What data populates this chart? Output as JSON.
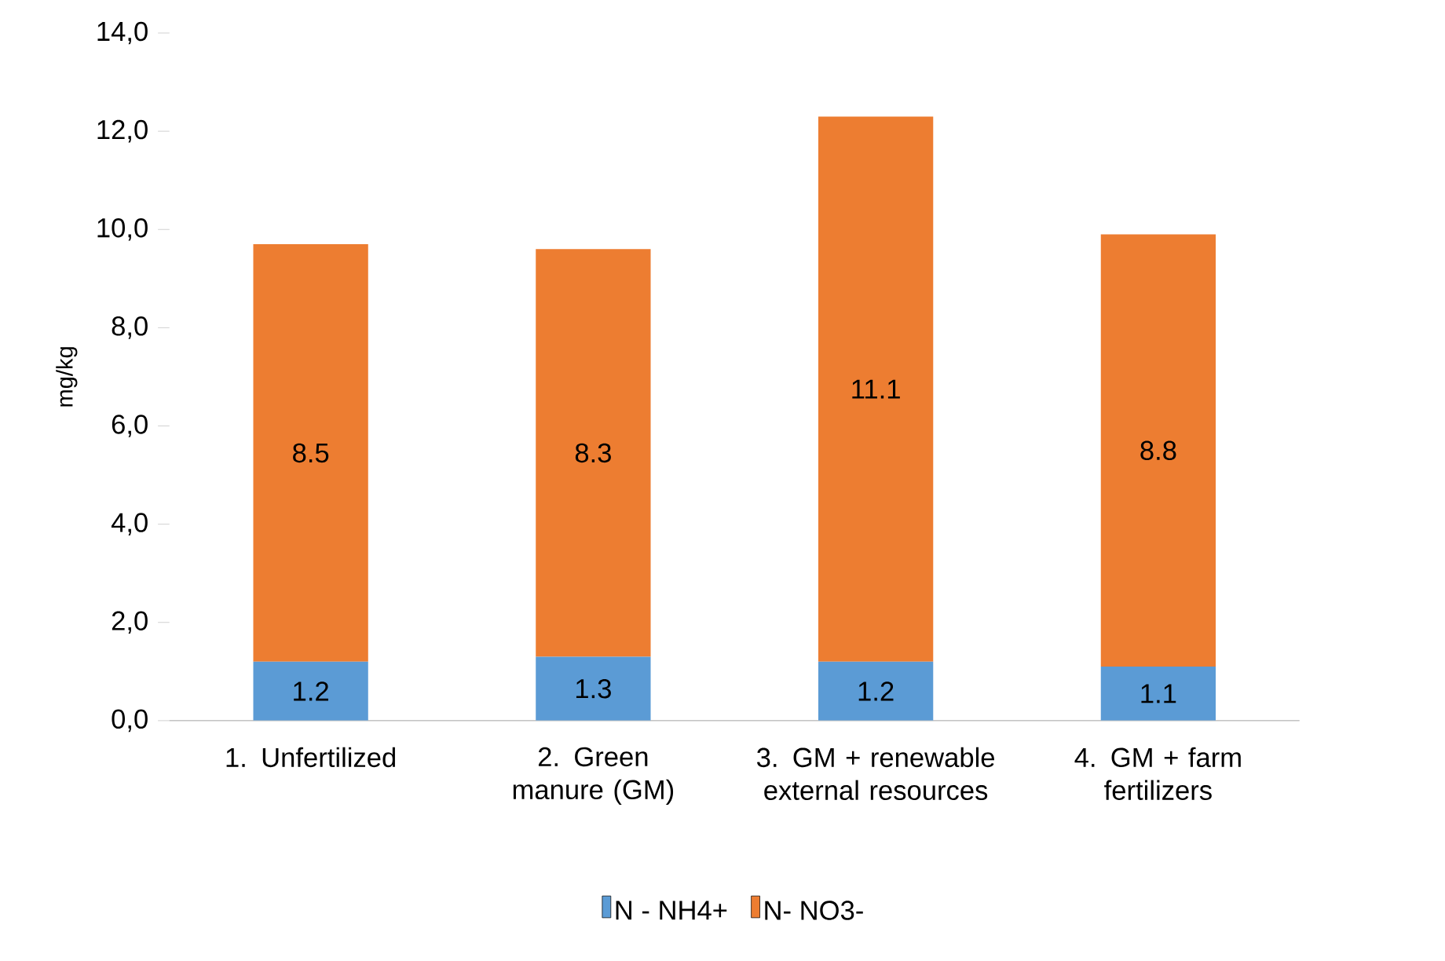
{
  "chart_data": {
    "type": "bar",
    "stacked": true,
    "ylabel": "mg/kg",
    "categories": [
      "1. Unfertilized",
      "2. Green manure (GM)",
      "3. GM + renewable external resources",
      "4. GM + farm fertilizers"
    ],
    "series": [
      {
        "name": "N - NH4+",
        "color": "#5b9bd5",
        "values": [
          1.2,
          1.3,
          1.2,
          1.1
        ]
      },
      {
        "name": "N- NO3-",
        "color": "#ed7d31",
        "values": [
          8.5,
          8.3,
          11.1,
          8.8
        ]
      }
    ],
    "ylim": [
      0,
      14
    ],
    "yticks": [
      {
        "value": 0,
        "label": "0,0"
      },
      {
        "value": 2,
        "label": "2,0"
      },
      {
        "value": 4,
        "label": "4,0"
      },
      {
        "value": 6,
        "label": "6,0"
      },
      {
        "value": 8,
        "label": "8,0"
      },
      {
        "value": 10,
        "label": "10,0"
      },
      {
        "value": 12,
        "label": "12,0"
      },
      {
        "value": 14,
        "label": "14,0"
      }
    ],
    "data_labels": true,
    "legend": "bottom",
    "grid": false
  }
}
